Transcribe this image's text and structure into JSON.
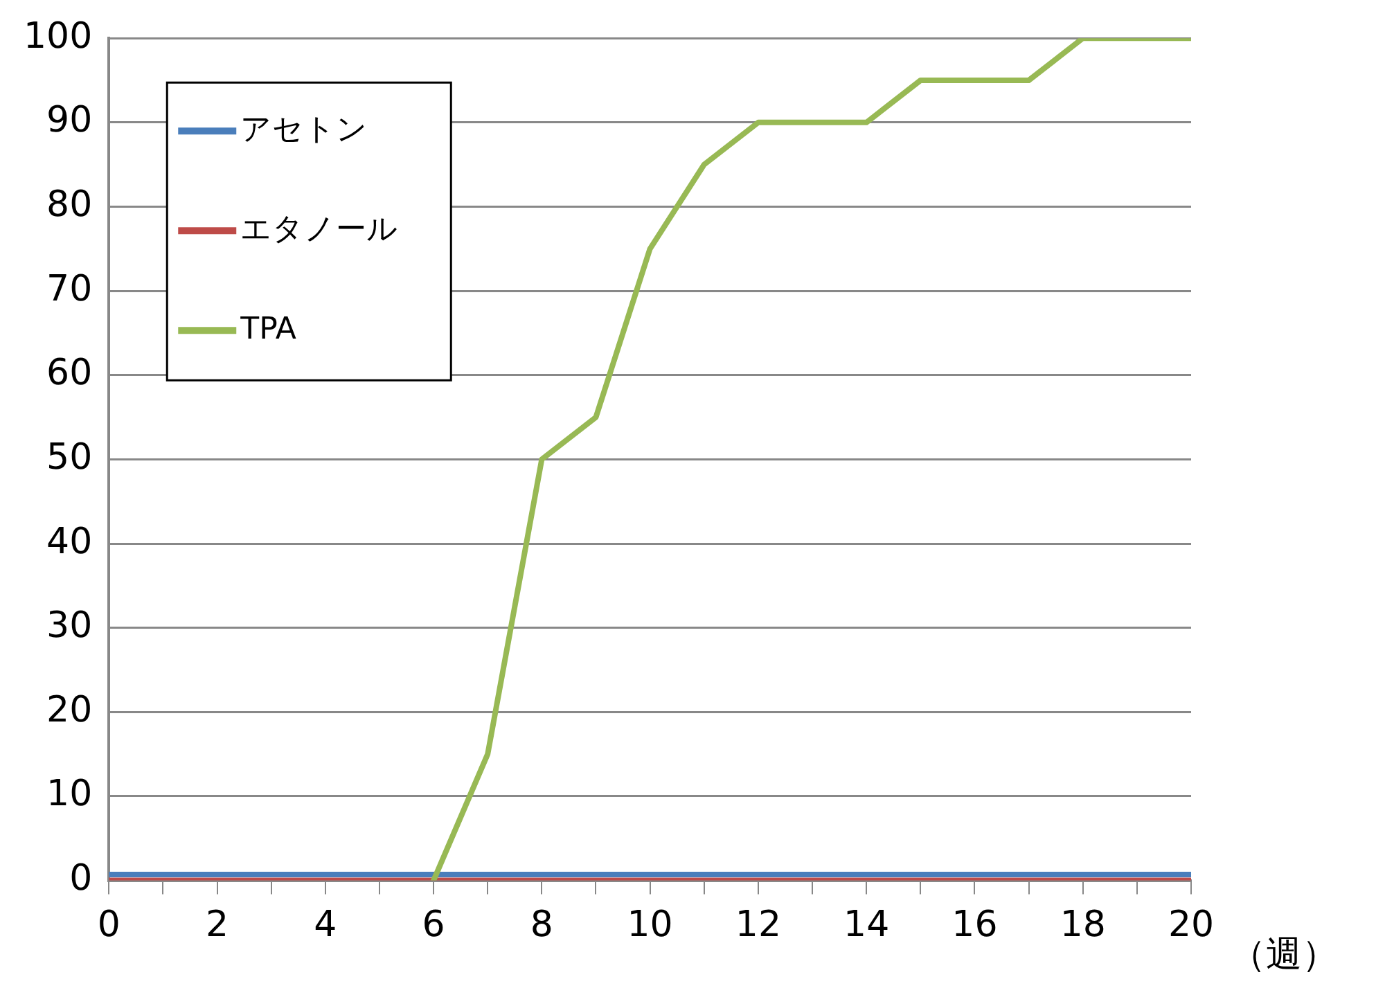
{
  "chart_data": {
    "type": "line",
    "xlabel": "（週）",
    "x": [
      0,
      1,
      2,
      3,
      4,
      5,
      6,
      7,
      8,
      9,
      10,
      11,
      12,
      13,
      14,
      15,
      16,
      17,
      18,
      19,
      20
    ],
    "series": [
      {
        "name": "アセトン",
        "color": "#4a7ebb",
        "values": [
          0.7,
          0.7,
          0.7,
          0.7,
          0.7,
          0.7,
          0.7,
          0.7,
          0.7,
          0.7,
          0.7,
          0.7,
          0.7,
          0.7,
          0.7,
          0.7,
          0.7,
          0.7,
          0.7,
          0.7,
          0.7
        ]
      },
      {
        "name": "エタノール",
        "color": "#be4b48",
        "values": [
          0,
          0,
          0,
          0,
          0,
          0,
          0,
          0,
          0,
          0,
          0,
          0,
          0,
          0,
          0,
          0,
          0,
          0,
          0,
          0,
          0
        ]
      },
      {
        "name": "TPA",
        "color": "#98b954",
        "values": [
          null,
          null,
          null,
          null,
          null,
          null,
          0,
          15,
          50,
          55,
          75,
          85,
          90,
          90,
          90,
          95,
          95,
          95,
          100,
          100,
          100
        ]
      }
    ],
    "xlim": [
      0,
      20
    ],
    "xticks": [
      0,
      {
        "value": 1,
        "label": null
      },
      2,
      {
        "value": 3,
        "label": null
      },
      4,
      {
        "value": 5,
        "label": null
      },
      6,
      {
        "value": 7,
        "label": null
      },
      8,
      {
        "value": 9,
        "label": null
      },
      10,
      {
        "value": 11,
        "label": null
      },
      12,
      {
        "value": 13,
        "label": null
      },
      14,
      {
        "value": 15,
        "label": null
      },
      16,
      {
        "value": 17,
        "label": null
      },
      18,
      {
        "value": 19,
        "label": null
      },
      20
    ],
    "ylim": [
      0,
      100
    ],
    "yticks": [
      0,
      10,
      20,
      30,
      40,
      50,
      60,
      70,
      80,
      90,
      100
    ],
    "grid": "y",
    "legend": "top left",
    "marker": "none",
    "line_style": "solid"
  }
}
